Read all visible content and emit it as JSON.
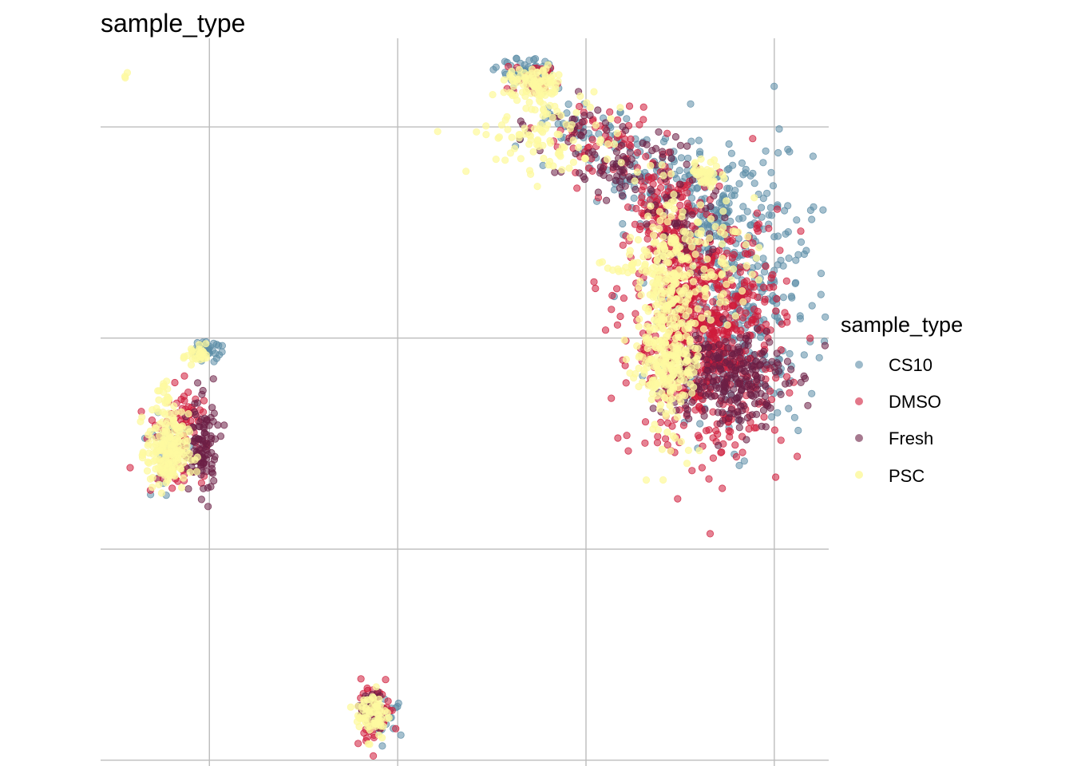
{
  "chart_data": {
    "type": "scatter",
    "title": "sample_type",
    "xlabel": "",
    "ylabel": "",
    "xlim": [
      -2.6,
      14.8
    ],
    "ylim": [
      -11.6,
      5.6
    ],
    "x_gridlines": [
      0,
      4.5,
      9,
      13.5
    ],
    "y_gridlines": [
      -11.5,
      -6.5,
      -1.5,
      3.5
    ],
    "x_tick_labels_visible": false,
    "y_tick_labels_visible": false,
    "grid": true,
    "point_opacity": 0.55,
    "legend": {
      "title": "sample_type",
      "placement": "right",
      "entries": [
        {
          "label": "CS10",
          "color": "#5b8ca6"
        },
        {
          "label": "DMSO",
          "color": "#d01c3b"
        },
        {
          "label": "Fresh",
          "color": "#6b1f45"
        },
        {
          "label": "PSC",
          "color": "#fdf9a0"
        }
      ]
    },
    "series": [
      {
        "name": "CS10",
        "color": "#5b8ca6",
        "clusters": [
          {
            "cx": 12.6,
            "cy": -0.3,
            "sx": 0.9,
            "sy": 1.6,
            "n": 420
          },
          {
            "cx": 11.9,
            "cy": 1.4,
            "sx": 0.5,
            "sy": 0.6,
            "n": 60
          },
          {
            "cx": 10.6,
            "cy": 2.3,
            "sx": 0.6,
            "sy": 0.45,
            "n": 80
          },
          {
            "cx": 7.6,
            "cy": 4.8,
            "sx": 0.35,
            "sy": 0.15,
            "n": 60
          },
          {
            "cx": 8.8,
            "cy": 3.3,
            "sx": 0.8,
            "sy": 0.4,
            "n": 50
          },
          {
            "cx": -0.1,
            "cy": -1.8,
            "sx": 0.2,
            "sy": 0.1,
            "n": 40
          },
          {
            "cx": -1.0,
            "cy": -4.0,
            "sx": 0.25,
            "sy": 0.5,
            "n": 35
          },
          {
            "cx": 4.2,
            "cy": -10.5,
            "sx": 0.2,
            "sy": 0.2,
            "n": 25
          }
        ]
      },
      {
        "name": "DMSO",
        "color": "#d01c3b",
        "clusters": [
          {
            "cx": 11.9,
            "cy": -1.4,
            "sx": 0.9,
            "sy": 1.4,
            "n": 700
          },
          {
            "cx": 11.3,
            "cy": 0.2,
            "sx": 0.4,
            "sy": 0.8,
            "n": 100
          },
          {
            "cx": 10.8,
            "cy": 1.8,
            "sx": 0.35,
            "sy": 0.6,
            "n": 80
          },
          {
            "cx": 9.5,
            "cy": 3.0,
            "sx": 0.6,
            "sy": 0.4,
            "n": 60
          },
          {
            "cx": 7.8,
            "cy": 4.6,
            "sx": 0.35,
            "sy": 0.2,
            "n": 30
          },
          {
            "cx": -0.5,
            "cy": -3.3,
            "sx": 0.2,
            "sy": 0.35,
            "n": 25
          },
          {
            "cx": -0.8,
            "cy": -4.0,
            "sx": 0.35,
            "sy": 0.6,
            "n": 70
          },
          {
            "cx": 3.9,
            "cy": -10.4,
            "sx": 0.25,
            "sy": 0.35,
            "n": 50
          }
        ]
      },
      {
        "name": "Fresh",
        "color": "#6b1f45",
        "clusters": [
          {
            "cx": 12.4,
            "cy": -2.4,
            "sx": 0.7,
            "sy": 0.6,
            "n": 250
          },
          {
            "cx": 11.3,
            "cy": 1.2,
            "sx": 0.4,
            "sy": 0.6,
            "n": 50
          },
          {
            "cx": 10.0,
            "cy": 2.6,
            "sx": 0.6,
            "sy": 0.4,
            "n": 60
          },
          {
            "cx": 8.6,
            "cy": 3.4,
            "sx": 0.5,
            "sy": 0.4,
            "n": 30
          },
          {
            "cx": -0.2,
            "cy": -4.1,
            "sx": 0.2,
            "sy": 0.6,
            "n": 110
          },
          {
            "cx": 3.8,
            "cy": -10.3,
            "sx": 0.15,
            "sy": 0.25,
            "n": 25
          }
        ]
      },
      {
        "name": "PSC",
        "color": "#fdf9a0",
        "clusters": [
          {
            "cx": -2.0,
            "cy": 4.7,
            "sx": 0.02,
            "sy": 0.02,
            "n": 3
          },
          {
            "cx": 10.9,
            "cy": -1.0,
            "sx": 0.35,
            "sy": 1.4,
            "n": 280
          },
          {
            "cx": 11.8,
            "cy": 0.3,
            "sx": 0.6,
            "sy": 0.7,
            "n": 100
          },
          {
            "cx": 11.0,
            "cy": -2.0,
            "sx": 0.35,
            "sy": 0.5,
            "n": 100
          },
          {
            "cx": 10.2,
            "cy": 0.2,
            "sx": 0.35,
            "sy": 0.12,
            "n": 25
          },
          {
            "cx": 11.9,
            "cy": 2.4,
            "sx": 0.2,
            "sy": 0.15,
            "n": 40
          },
          {
            "cx": 8.1,
            "cy": 3.3,
            "sx": 0.9,
            "sy": 0.5,
            "n": 100
          },
          {
            "cx": 7.8,
            "cy": 4.5,
            "sx": 0.35,
            "sy": 0.2,
            "n": 90
          },
          {
            "cx": -0.3,
            "cy": -1.9,
            "sx": 0.15,
            "sy": 0.12,
            "n": 30
          },
          {
            "cx": -1.0,
            "cy": -4.2,
            "sx": 0.25,
            "sy": 0.45,
            "n": 190
          },
          {
            "cx": -1.1,
            "cy": -2.9,
            "sx": 0.08,
            "sy": 0.2,
            "n": 20
          },
          {
            "cx": 3.9,
            "cy": -10.4,
            "sx": 0.2,
            "sy": 0.3,
            "n": 70
          }
        ]
      }
    ]
  }
}
